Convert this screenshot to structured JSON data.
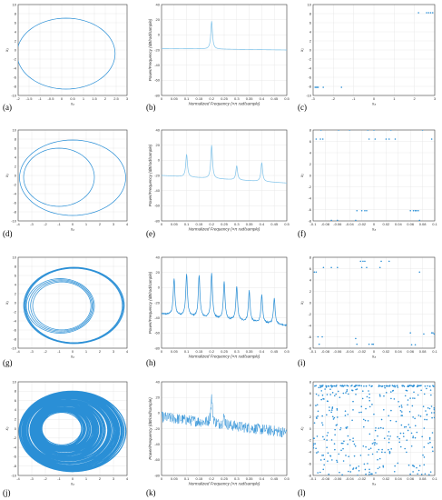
{
  "figure": {
    "panel_labels": [
      "(a)",
      "(b)",
      "(c)",
      "(d)",
      "(e)",
      "(f)",
      "(g)",
      "(h)",
      "(i)",
      "(j)",
      "(k)",
      "(l)"
    ],
    "colors": {
      "line": "#2a8fd6",
      "psd_light": "#7fc3ea",
      "frame": "#444444"
    }
  },
  "chart_data": [
    {
      "id": "a",
      "type": "line",
      "xlabel": "x₂",
      "ylabel": "x₃",
      "xticks": [
        -2,
        -1.5,
        -1,
        -0.5,
        0,
        0.5,
        1,
        1.5,
        2,
        2.5,
        3
      ],
      "yticks": [
        10,
        8,
        6,
        4,
        2,
        0,
        -2,
        -4,
        -6,
        -8,
        -10
      ],
      "xlim": [
        -2,
        3
      ],
      "ylim": [
        -10,
        10
      ],
      "orbit": {
        "cx": 0.2,
        "cy": -0.8,
        "rx": 2.25,
        "ry": 7.8,
        "loops": 1
      }
    },
    {
      "id": "b",
      "type": "line",
      "xlabel": "Normalized Frequency (×π rad/sample)",
      "ylabel": "Power/Frequency (dB/rad/sample)",
      "xticks": [
        0,
        0.05,
        0.1,
        0.15,
        0.2,
        0.25,
        0.3,
        0.35,
        0.4,
        0.45,
        0.5
      ],
      "yticks": [
        40,
        20,
        0,
        -20,
        -40,
        -60,
        -80
      ],
      "xlim": [
        0,
        0.5
      ],
      "ylim": [
        -80,
        40
      ],
      "series": [
        {
          "peaks": [
            [
              0.2,
              18
            ]
          ],
          "floor": [
            -18,
            -20
          ]
        }
      ]
    },
    {
      "id": "c",
      "type": "scatter",
      "xlabel": "x₃",
      "ylabel": "x₂",
      "xticks": [
        -3,
        -2,
        -1,
        0,
        1,
        2,
        3
      ],
      "yticks": [
        10,
        8,
        6,
        4,
        2,
        0,
        -2,
        -4,
        -6,
        -8,
        -10
      ],
      "xlim": [
        -3,
        3
      ],
      "ylim": [
        -10,
        10
      ],
      "points": [
        [
          -2.9,
          -8.2
        ],
        [
          -2.85,
          -8.2
        ],
        [
          -2.8,
          -8.2
        ],
        [
          -2.75,
          -8.2
        ],
        [
          -2.5,
          -8.2
        ],
        [
          -1.6,
          -8.2
        ],
        [
          2.2,
          8.2
        ],
        [
          2.6,
          8.2
        ],
        [
          2.7,
          8.2
        ],
        [
          2.8,
          8.2
        ],
        [
          2.9,
          8.2
        ]
      ]
    },
    {
      "id": "d",
      "type": "line",
      "xlabel": "x₂",
      "ylabel": "x₃",
      "xticks": [
        -4,
        -3,
        -2,
        -1,
        0,
        1,
        2,
        3,
        4
      ],
      "yticks": [
        10,
        8,
        6,
        4,
        2,
        0,
        -2,
        -4,
        -6,
        -8,
        -10
      ],
      "xlim": [
        -4,
        4
      ],
      "ylim": [
        -10,
        10
      ],
      "orbit": {
        "cx": 0,
        "cy": -0.5,
        "rx": 3.9,
        "ry": 8.3,
        "inner_cx": -1.0,
        "inner_cy": -0.4,
        "inner_rx": 2.6,
        "inner_ry": 6.4
      }
    },
    {
      "id": "e",
      "type": "line",
      "xlabel": "Normalized Frequency (×π rad/sample)",
      "ylabel": "Power/Frequency (dB/rad/sample)",
      "xticks": [
        0,
        0.05,
        0.1,
        0.15,
        0.2,
        0.25,
        0.3,
        0.35,
        0.4,
        0.45,
        0.5
      ],
      "yticks": [
        40,
        20,
        0,
        -20,
        -40,
        -60,
        -80
      ],
      "xlim": [
        0,
        0.5
      ],
      "ylim": [
        -80,
        40
      ],
      "series": [
        {
          "peaks": [
            [
              0.1,
              8
            ],
            [
              0.2,
              20
            ],
            [
              0.3,
              -7
            ],
            [
              0.4,
              -3
            ]
          ],
          "floor": [
            -20,
            -30
          ]
        }
      ]
    },
    {
      "id": "f",
      "type": "scatter",
      "xlabel": "x₃",
      "ylabel": "x₂",
      "xticks": [
        -0.1,
        -0.08,
        -0.06,
        -0.04,
        -0.02,
        0,
        0.02,
        0.04,
        0.06,
        0.08,
        0.1
      ],
      "yticks": [
        8,
        6,
        4,
        2,
        0,
        -2,
        -4,
        -6,
        -8
      ],
      "xlim": [
        -0.1,
        0.1
      ],
      "ylim": [
        -8,
        8
      ],
      "points": [
        [
          -0.095,
          6.4
        ],
        [
          -0.088,
          6.4
        ],
        [
          -0.087,
          8.0
        ],
        [
          -0.084,
          6.4
        ],
        [
          -0.07,
          -7.9
        ],
        [
          -0.06,
          -7.9
        ],
        [
          -0.058,
          8.0
        ],
        [
          -0.04,
          8.0
        ],
        [
          -0.03,
          -7.9
        ],
        [
          -0.028,
          -6.2
        ],
        [
          -0.02,
          -6.2
        ],
        [
          -0.015,
          -6.2
        ],
        [
          -0.012,
          -6.2
        ],
        [
          -0.01,
          8.0
        ],
        [
          -0.008,
          6.4
        ],
        [
          0.0,
          8.0
        ],
        [
          0.002,
          6.4
        ],
        [
          0.02,
          6.4
        ],
        [
          0.025,
          6.4
        ],
        [
          0.028,
          8.0
        ],
        [
          0.035,
          6.4
        ],
        [
          0.06,
          -6.2
        ],
        [
          0.065,
          -6.2
        ],
        [
          0.068,
          -6.2
        ],
        [
          0.07,
          -6.2
        ],
        [
          0.073,
          -6.2
        ],
        [
          0.075,
          -7.9
        ],
        [
          0.08,
          8.0
        ],
        [
          0.095,
          6.4
        ]
      ]
    },
    {
      "id": "g",
      "type": "line",
      "xlabel": "x₂",
      "ylabel": "x₃",
      "xticks": [
        -4,
        -3,
        -2,
        -1,
        0,
        1,
        2,
        3,
        4
      ],
      "yticks": [
        10,
        8,
        6,
        4,
        2,
        0,
        -2,
        -4,
        -6,
        -8,
        -10
      ],
      "xlim": [
        -4,
        4
      ],
      "ylim": [
        -10,
        10
      ],
      "orbit": {
        "cx": 0.1,
        "cy": -0.6,
        "rx": 3.7,
        "ry": 8.4,
        "inner_cx": -0.9,
        "inner_cy": -0.7,
        "inner_rx": 2.5,
        "inner_ry": 6.0,
        "loops": 4
      }
    },
    {
      "id": "h",
      "type": "line",
      "xlabel": "Normalized Frequency (×π rad/sample)",
      "ylabel": "Power/Frequency (dB/rad/sample)",
      "xticks": [
        0,
        0.05,
        0.1,
        0.15,
        0.2,
        0.25,
        0.3,
        0.35,
        0.4,
        0.45,
        0.5
      ],
      "yticks": [
        40,
        20,
        0,
        -20,
        -40,
        -60,
        -80
      ],
      "xlim": [
        0,
        0.5
      ],
      "ylim": [
        -80,
        40
      ],
      "series": [
        {
          "peaks": [
            [
              0.05,
              12
            ],
            [
              0.1,
              18
            ],
            [
              0.15,
              16
            ],
            [
              0.2,
              20
            ],
            [
              0.25,
              8
            ],
            [
              0.3,
              2
            ],
            [
              0.35,
              -4
            ],
            [
              0.4,
              -10
            ],
            [
              0.45,
              -14
            ]
          ],
          "floor": [
            -35,
            -50
          ]
        }
      ]
    },
    {
      "id": "i",
      "type": "scatter",
      "xlabel": "x₃",
      "ylabel": "x₂",
      "xticks": [
        -0.1,
        -0.08,
        -0.06,
        -0.04,
        -0.02,
        0,
        0.02,
        0.04,
        0.06,
        0.08,
        0.1
      ],
      "yticks": [
        8,
        6,
        4,
        2,
        0,
        -2,
        -4,
        -6,
        -8
      ],
      "xlim": [
        -0.1,
        0.1
      ],
      "ylim": [
        -8,
        8
      ],
      "points": [
        [
          -0.098,
          5.4
        ],
        [
          -0.095,
          5.4
        ],
        [
          -0.092,
          -6.0
        ],
        [
          -0.09,
          -7.3
        ],
        [
          -0.085,
          -6.0
        ],
        [
          -0.083,
          6.2
        ],
        [
          -0.07,
          6.2
        ],
        [
          -0.06,
          6.2
        ],
        [
          -0.03,
          -6.3
        ],
        [
          -0.028,
          -7.3
        ],
        [
          -0.022,
          7.3
        ],
        [
          -0.02,
          6.2
        ],
        [
          -0.018,
          7.3
        ],
        [
          -0.015,
          7.3
        ],
        [
          -0.012,
          6.2
        ],
        [
          -0.008,
          -7.3
        ],
        [
          -0.003,
          -7.3
        ],
        [
          -0.001,
          -7.3
        ],
        [
          0.01,
          6.2
        ],
        [
          0.012,
          7.3
        ],
        [
          0.025,
          7.3
        ],
        [
          0.06,
          -5.3
        ],
        [
          0.062,
          -7.4
        ],
        [
          0.068,
          -7.4
        ],
        [
          0.075,
          5.4
        ],
        [
          0.082,
          -5.5
        ],
        [
          0.095,
          -5.3
        ],
        [
          0.097,
          -5.3
        ],
        [
          0.099,
          -5.5
        ]
      ]
    },
    {
      "id": "j",
      "type": "line",
      "xlabel": "x₂",
      "ylabel": "x₃",
      "xticks": [
        -4,
        -3,
        -2,
        -1,
        0,
        1,
        2,
        3,
        4
      ],
      "yticks": [
        10,
        8,
        6,
        4,
        2,
        0,
        -2,
        -4,
        -6,
        -8,
        -10
      ],
      "xlim": [
        -4,
        4
      ],
      "ylim": [
        -10,
        10
      ],
      "orbit": {
        "cx": 0,
        "cy": -0.6,
        "rx": 3.9,
        "ry": 8.6,
        "hole_cx": -0.8,
        "hole_cy": 0,
        "hole_rx": 1.5,
        "hole_ry": 3.6,
        "chaotic": true
      }
    },
    {
      "id": "k",
      "type": "line",
      "xlabel": "Normalized Frequency (×π rad/sample)",
      "ylabel": "Power/Frequency (dB/rad/sample)",
      "xticks": [
        0,
        0.05,
        0.1,
        0.15,
        0.2,
        0.25,
        0.3,
        0.35,
        0.4,
        0.45,
        0.5
      ],
      "yticks": [
        40,
        20,
        0,
        -20,
        -40,
        -60,
        -80
      ],
      "xlim": [
        0,
        0.5
      ],
      "ylim": [
        -80,
        40
      ],
      "series": [
        {
          "peaks": [
            [
              0.2,
              20
            ],
            [
              0.25,
              -5
            ]
          ],
          "floor": [
            -5,
            -25
          ],
          "noisy": true
        }
      ]
    },
    {
      "id": "l",
      "type": "scatter",
      "xlabel": "x₃",
      "ylabel": "x₂",
      "xticks": [
        -0.1,
        -0.08,
        -0.06,
        -0.04,
        -0.02,
        0,
        0.02,
        0.04,
        0.06,
        0.08,
        0.1
      ],
      "yticks": [
        8,
        6,
        4,
        2,
        0,
        -2,
        -4,
        -6,
        -8
      ],
      "xlim": [
        -0.1,
        0.1
      ],
      "ylim": [
        -8,
        8
      ],
      "points_generated": true,
      "top_band": 7.3
    }
  ]
}
